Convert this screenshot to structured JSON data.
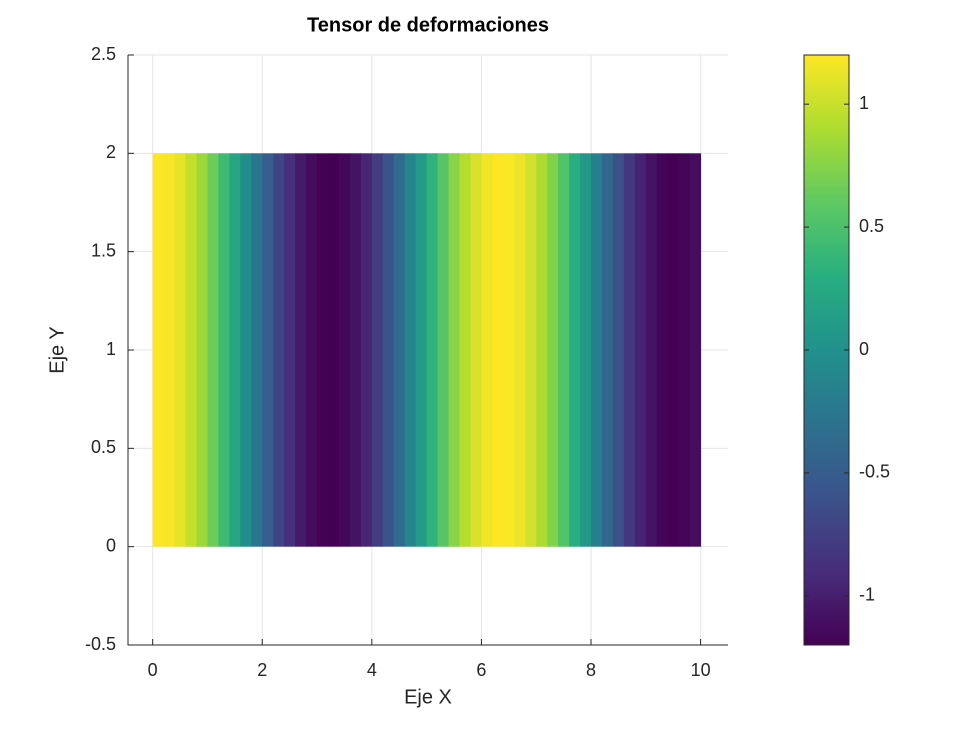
{
  "chart_data": {
    "type": "heatmap",
    "title": "Tensor de deformaciones",
    "x_label": "Eje X",
    "y_label": "Eje Y",
    "x_edges": [
      0,
      0.2,
      0.4,
      0.6,
      0.8,
      1,
      1.2,
      1.4,
      1.6,
      1.8,
      2,
      2.2,
      2.4,
      2.6,
      2.8,
      3,
      3.2,
      3.4,
      3.6,
      3.8,
      4,
      4.2,
      4.4,
      4.6,
      4.8,
      5,
      5.2,
      5.4,
      5.6,
      5.8,
      6,
      6.2,
      6.4,
      6.6,
      6.8,
      7,
      7.2,
      7.4,
      7.6,
      7.8,
      8,
      8.2,
      8.4,
      8.6,
      8.8,
      9,
      9.2,
      9.4,
      9.6,
      9.8,
      10
    ],
    "y_edges": [
      0,
      2
    ],
    "values": [
      1.2,
      1.18,
      1.11,
      0.99,
      0.84,
      0.65,
      0.43,
      0.2,
      -0.03,
      -0.27,
      -0.5,
      -0.71,
      -0.88,
      -1.03,
      -1.13,
      -1.19,
      -1.2,
      -1.16,
      -1.08,
      -0.95,
      -0.78,
      -0.59,
      -0.37,
      -0.13,
      0.1,
      0.34,
      0.56,
      0.76,
      0.93,
      1.06,
      1.15,
      1.2,
      1.19,
      1.14,
      1.04,
      0.9,
      0.73,
      0.53,
      0.3,
      0.07,
      -0.17,
      -0.41,
      -0.62,
      -0.81,
      -0.97,
      -1.09,
      -1.17,
      -1.2,
      -1.18,
      -1.12
    ],
    "xlim": [
      -0.45,
      10.5
    ],
    "xticks": [
      0,
      2,
      4,
      6,
      8,
      10
    ],
    "ylim": [
      -0.5,
      2.5
    ],
    "yticks": [
      -0.5,
      0,
      0.5,
      1,
      1.5,
      2,
      2.5
    ],
    "grid": true,
    "colormap": "viridis",
    "clim": [
      -1.2,
      1.2
    ],
    "cticks": [
      -1,
      -0.5,
      0,
      0.5,
      1
    ]
  }
}
